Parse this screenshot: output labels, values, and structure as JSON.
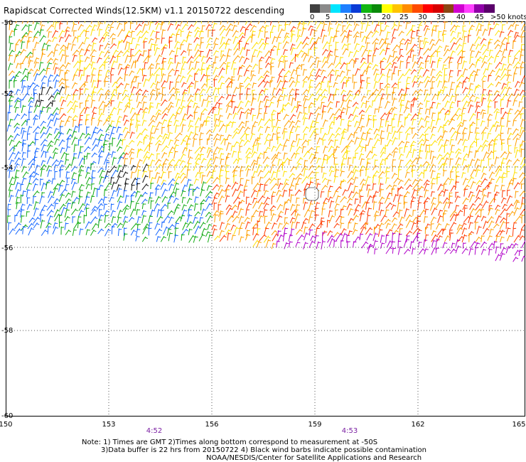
{
  "title": "Rapidscat Corrected Winds(12.5KM) v1.1 20150722 descending",
  "legend": {
    "unit_label": ">50 knots",
    "ticks": [
      "0",
      "5",
      "10",
      "15",
      "20",
      "25",
      "30",
      "35",
      "40",
      "45"
    ],
    "colors": [
      "#404040",
      "#8a8a8a",
      "#00e5ff",
      "#1e7fff",
      "#0a3bd6",
      "#12b612",
      "#0a8a0a",
      "#ffff00",
      "#ffc400",
      "#ff8c00",
      "#ff4a00",
      "#ff0000",
      "#d60000",
      "#8b4513",
      "#d000d0",
      "#ff40ff",
      "#9000a8",
      "#5a006a"
    ]
  },
  "map": {
    "lat_labels": [
      "-50",
      "-52",
      "-54",
      "-56",
      "-58",
      "-60"
    ],
    "lon_labels": [
      "150",
      "153",
      "156",
      "159",
      "162",
      "165"
    ],
    "times": [
      "4:52",
      "4:53"
    ],
    "gridline_color": "#555555",
    "colors": {
      "calm": "#111111",
      "blue": "#1466ff",
      "green": "#11aa11",
      "yellow": "#ffe000",
      "orange": "#ffa000",
      "red": "#ff3a00",
      "purple": "#b000c8"
    }
  },
  "notes": {
    "line1": "Note: 1) Times are GMT 2)Times along bottom correspond to measurement at -50S",
    "line2": "3)Data buffer is 22 hrs from 20150722 4) Black wind barbs indicate possible contamination",
    "line3": "NOAA/NESDIS/Center for Satellite Applications and Research"
  }
}
